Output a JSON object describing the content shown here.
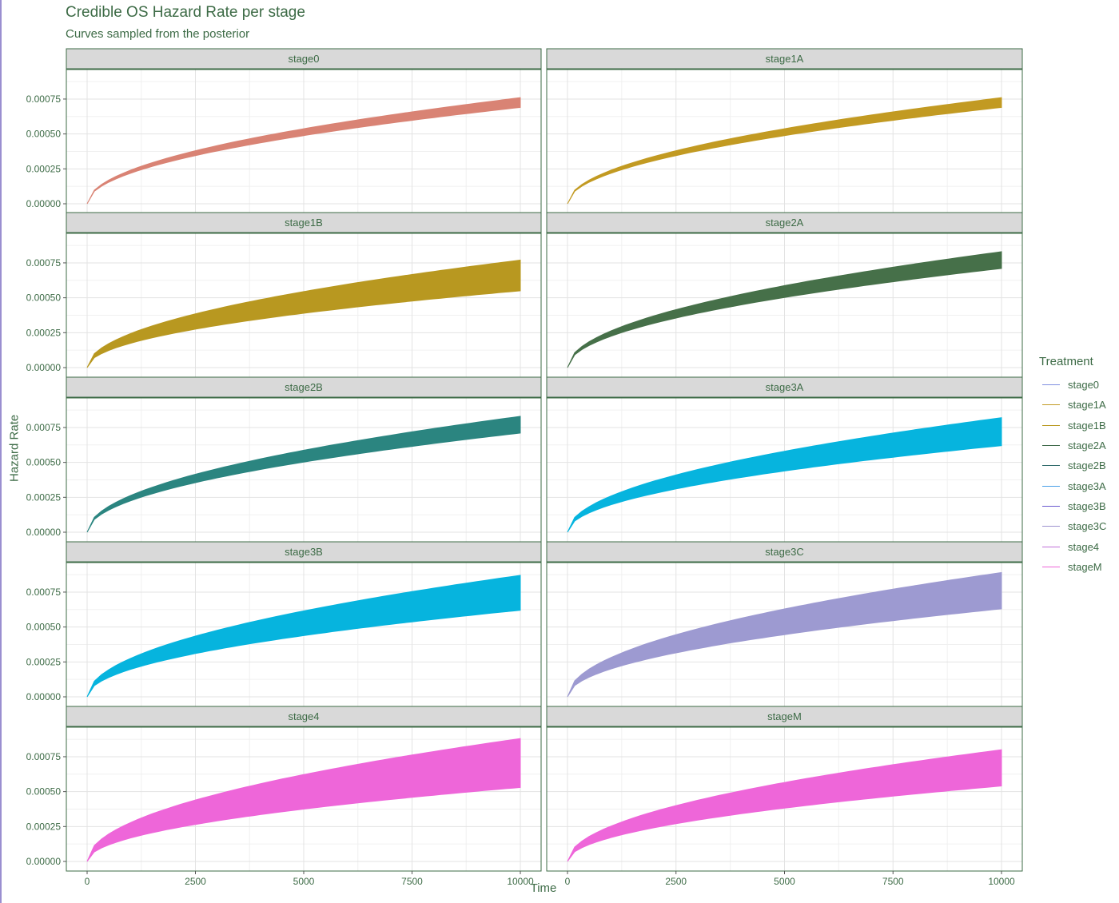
{
  "title": "Credible OS Hazard Rate per stage",
  "subtitle": "Curves sampled from the posterior",
  "xlabel": "Time",
  "ylabel": "Hazard Rate",
  "legend": {
    "title": "Treatment",
    "items": [
      {
        "label": "stage0",
        "color": "#7f8fe0"
      },
      {
        "label": "stage1A",
        "color": "#c29a22"
      },
      {
        "label": "stage1B",
        "color": "#b89820"
      },
      {
        "label": "stage2A",
        "color": "#3f6a4a"
      },
      {
        "label": "stage2B",
        "color": "#2f6a6a"
      },
      {
        "label": "stage3A",
        "color": "#4aa0e8"
      },
      {
        "label": "stage3B",
        "color": "#6a5ad0"
      },
      {
        "label": "stage3C",
        "color": "#9d92cf"
      },
      {
        "label": "stage4",
        "color": "#c070d8"
      },
      {
        "label": "stageM",
        "color": "#ee66d9"
      }
    ]
  },
  "chart_data": {
    "type": "area",
    "facet_layout": "5 rows x 2 columns",
    "x_ticks": [
      0,
      2500,
      5000,
      7500,
      10000
    ],
    "y_ticks": [
      0,
      0.00025,
      0.0005,
      0.00075
    ],
    "y_tick_labels": [
      "0.00000",
      "0.00025",
      "0.00050",
      "0.00075"
    ],
    "xlim": [
      0,
      10000
    ],
    "ylim": [
      0,
      0.00095
    ],
    "grid": true,
    "legend_position": "right",
    "curve_shape": "power law, hazard proportional to sqrt(time)",
    "series": [
      {
        "name": "stage0",
        "fill": "#d98374",
        "x_end": 10000,
        "upper_at_end": 0.00076,
        "lower_at_end": 0.00069
      },
      {
        "name": "stage1A",
        "fill": "#c29a22",
        "x_end": 10000,
        "upper_at_end": 0.00076,
        "lower_at_end": 0.00069
      },
      {
        "name": "stage1B",
        "fill": "#b89820",
        "x_end": 10000,
        "upper_at_end": 0.00077,
        "lower_at_end": 0.00055
      },
      {
        "name": "stage2A",
        "fill": "#467049",
        "x_end": 10000,
        "upper_at_end": 0.00083,
        "lower_at_end": 0.00071
      },
      {
        "name": "stage2B",
        "fill": "#2b8580",
        "x_end": 10000,
        "upper_at_end": 0.00083,
        "lower_at_end": 0.00071
      },
      {
        "name": "stage3A",
        "fill": "#06b4de",
        "x_end": 10000,
        "upper_at_end": 0.00082,
        "lower_at_end": 0.00062
      },
      {
        "name": "stage3B",
        "fill": "#06b4de",
        "x_end": 10000,
        "upper_at_end": 0.00087,
        "lower_at_end": 0.00062
      },
      {
        "name": "stage3C",
        "fill": "#9d9ad1",
        "x_end": 10000,
        "upper_at_end": 0.00089,
        "lower_at_end": 0.00063
      },
      {
        "name": "stage4",
        "fill": "#ee66d9",
        "x_end": 10000,
        "upper_at_end": 0.00088,
        "lower_at_end": 0.00053
      },
      {
        "name": "stageM",
        "fill": "#ee66d9",
        "x_end": 10000,
        "upper_at_end": 0.0008,
        "lower_at_end": 0.00054
      }
    ]
  }
}
